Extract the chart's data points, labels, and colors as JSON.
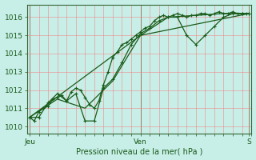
{
  "title": "Pression niveau de la mer( hPa )",
  "xlabel_ticks": [
    "Jeu",
    "Ven",
    "S"
  ],
  "xlabel_tick_positions": [
    0,
    48,
    95
  ],
  "ylabel_ticks": [
    1010,
    1011,
    1012,
    1013,
    1014,
    1015,
    1016
  ],
  "ylim": [
    1009.6,
    1016.7
  ],
  "xlim": [
    -1,
    96
  ],
  "background_color": "#c8eee8",
  "grid_color": "#f08080",
  "line_color": "#1a5c1a",
  "series1": {
    "x": [
      0,
      2,
      4,
      6,
      8,
      10,
      12,
      14,
      16,
      18,
      20,
      22,
      24,
      26,
      28,
      30,
      32,
      34,
      36,
      38,
      40,
      42,
      44,
      46,
      48,
      50,
      52,
      54,
      56,
      58,
      60,
      62,
      64,
      66,
      68,
      70,
      72,
      74,
      76,
      78,
      80,
      82,
      84,
      86,
      88,
      90,
      92,
      94,
      95
    ],
    "y": [
      1010.5,
      1010.3,
      1010.8,
      1011.0,
      1011.1,
      1011.5,
      1011.6,
      1011.7,
      1011.4,
      1011.9,
      1012.1,
      1012.0,
      1011.6,
      1011.2,
      1011.0,
      1011.4,
      1012.3,
      1013.0,
      1013.8,
      1014.1,
      1014.5,
      1014.6,
      1014.8,
      1015.0,
      1015.2,
      1015.4,
      1015.5,
      1015.8,
      1016.0,
      1016.1,
      1016.0,
      1016.1,
      1016.2,
      1016.1,
      1016.0,
      1016.1,
      1016.1,
      1016.2,
      1016.2,
      1016.1,
      1016.2,
      1016.3,
      1016.2,
      1016.2,
      1016.3,
      1016.2,
      1016.2,
      1016.2,
      1016.2
    ]
  },
  "series2": {
    "x": [
      0,
      4,
      8,
      12,
      16,
      20,
      24,
      28,
      32,
      36,
      40,
      44,
      48,
      52,
      56,
      60,
      64,
      68,
      72,
      76,
      80,
      84,
      88,
      92,
      95
    ],
    "y": [
      1010.5,
      1010.5,
      1011.3,
      1011.8,
      1011.4,
      1011.8,
      1010.3,
      1010.3,
      1012.1,
      1012.6,
      1013.5,
      1014.5,
      1015.1,
      1015.4,
      1015.8,
      1016.0,
      1016.0,
      1015.0,
      1014.5,
      1015.0,
      1015.5,
      1016.0,
      1016.2,
      1016.2,
      1016.2
    ]
  },
  "series3": {
    "x": [
      0,
      12,
      24,
      36,
      48,
      60,
      72,
      84,
      95
    ],
    "y": [
      1010.5,
      1011.5,
      1011.0,
      1012.5,
      1015.0,
      1016.0,
      1016.1,
      1016.2,
      1016.2
    ]
  },
  "series4": {
    "x": [
      0,
      48,
      95
    ],
    "y": [
      1010.5,
      1015.0,
      1016.2
    ]
  }
}
